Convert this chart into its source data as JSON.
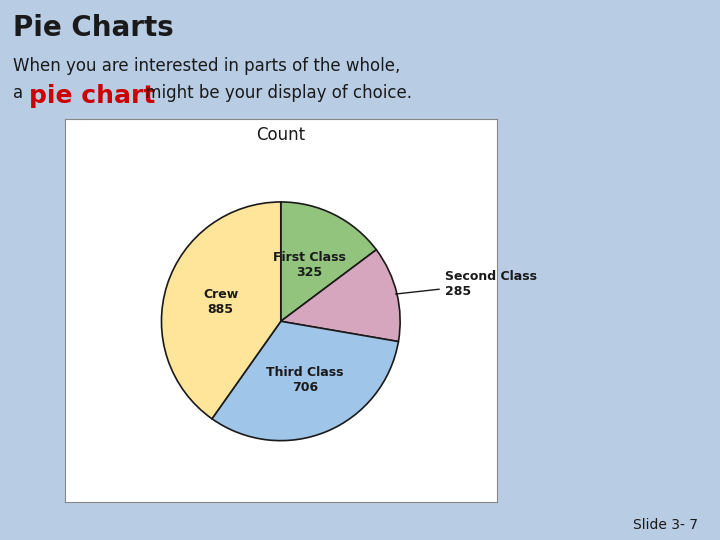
{
  "title": "Pie Charts",
  "subtitle_line1": "When you are interested in parts of the whole,",
  "subtitle_line2_prefix": "a ",
  "subtitle_line2_highlight": "pie chart",
  "subtitle_line2_suffix": " might be your display of choice.",
  "pie_title": "Count",
  "slide_label": "Slide 3- 7",
  "background_color": "#b8cce4",
  "pie_bg_color": "#ffffff",
  "categories": [
    "First Class",
    "Second Class",
    "Third Class",
    "Crew"
  ],
  "values": [
    325,
    285,
    706,
    885
  ],
  "colors": [
    "#93c47d",
    "#d5a6bd",
    "#9fc5e8",
    "#ffe599"
  ],
  "edge_color": "#1a1a1a",
  "title_color": "#1a1a1a",
  "highlight_color": "#cc0000",
  "label_color": "#1a1a1a",
  "title_fontsize": 20,
  "subtitle_fontsize": 12,
  "highlight_fontsize": 18,
  "pie_label_fontsize": 9,
  "pie_title_fontsize": 12,
  "slide_fontsize": 10
}
